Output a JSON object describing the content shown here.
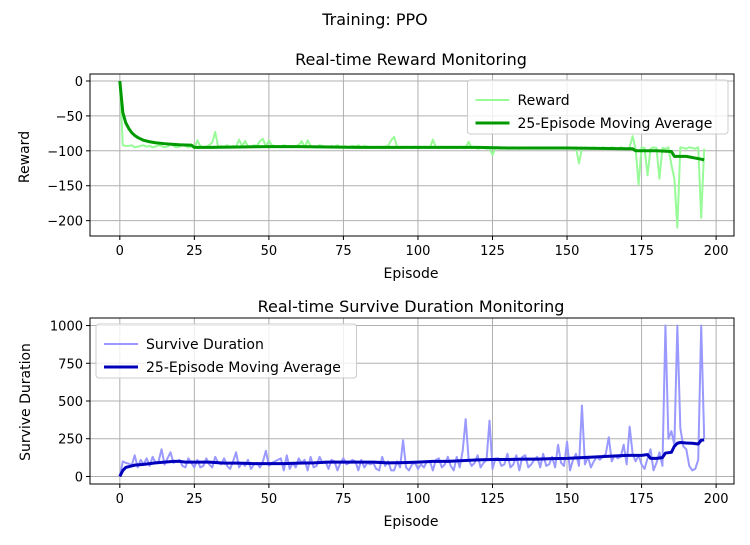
{
  "figure_title": "Training: PPO",
  "chart_data": [
    {
      "type": "line",
      "title": "Real-time Reward Monitoring",
      "xlabel": "Episode",
      "ylabel": "Reward",
      "xlim": [
        -10,
        206
      ],
      "ylim": [
        -222,
        10
      ],
      "xticks": [
        0,
        25,
        50,
        75,
        100,
        125,
        150,
        175,
        200
      ],
      "yticks": [
        0,
        -50,
        -100,
        -150,
        -200
      ],
      "grid": true,
      "legend_position": "top-right",
      "series": [
        {
          "name": "Reward",
          "color": "#98fb98",
          "width": 2,
          "x": [
            0,
            1,
            2,
            3,
            4,
            5,
            6,
            7,
            8,
            9,
            10,
            11,
            12,
            13,
            14,
            15,
            16,
            17,
            18,
            19,
            20,
            21,
            22,
            23,
            24,
            25,
            26,
            27,
            28,
            29,
            30,
            31,
            32,
            33,
            34,
            35,
            36,
            37,
            38,
            39,
            40,
            41,
            42,
            43,
            44,
            45,
            46,
            47,
            48,
            49,
            50,
            51,
            52,
            53,
            54,
            55,
            56,
            57,
            58,
            59,
            60,
            61,
            62,
            63,
            64,
            65,
            66,
            67,
            68,
            69,
            70,
            71,
            72,
            73,
            74,
            75,
            76,
            77,
            78,
            79,
            80,
            81,
            82,
            83,
            84,
            85,
            86,
            87,
            88,
            89,
            90,
            91,
            92,
            93,
            94,
            95,
            96,
            97,
            98,
            99,
            100,
            101,
            102,
            103,
            104,
            105,
            106,
            107,
            108,
            109,
            110,
            111,
            112,
            113,
            114,
            115,
            116,
            117,
            118,
            119,
            120,
            121,
            122,
            123,
            124,
            125,
            126,
            127,
            128,
            129,
            130,
            131,
            132,
            133,
            134,
            135,
            136,
            137,
            138,
            139,
            140,
            141,
            142,
            143,
            144,
            145,
            146,
            147,
            148,
            149,
            150,
            151,
            152,
            153,
            154,
            155,
            156,
            157,
            158,
            159,
            160,
            161,
            162,
            163,
            164,
            165,
            166,
            167,
            168,
            169,
            170,
            171,
            172,
            173,
            174,
            175,
            176,
            177,
            178,
            179,
            180,
            181,
            182,
            183,
            184,
            185,
            186,
            187,
            188,
            189,
            190,
            191,
            192,
            193,
            194,
            195,
            196
          ],
          "y": [
            0,
            -92,
            -93,
            -93,
            -92,
            -95,
            -94,
            -93,
            -92,
            -94,
            -93,
            -95,
            -94,
            -92,
            -93,
            -95,
            -94,
            -91,
            -93,
            -95,
            -94,
            -92,
            -93,
            -95,
            -94,
            -96,
            -85,
            -93,
            -95,
            -94,
            -92,
            -88,
            -73,
            -95,
            -93,
            -94,
            -92,
            -95,
            -93,
            -94,
            -84,
            -93,
            -86,
            -94,
            -95,
            -92,
            -93,
            -86,
            -83,
            -94,
            -85,
            -92,
            -93,
            -94,
            -95,
            -92,
            -93,
            -94,
            -95,
            -93,
            -92,
            -86,
            -95,
            -85,
            -93,
            -94,
            -95,
            -92,
            -93,
            -94,
            -95,
            -93,
            -94,
            -92,
            -95,
            -93,
            -94,
            -95,
            -93,
            -94,
            -92,
            -95,
            -93,
            -94,
            -95,
            -96,
            -94,
            -95,
            -96,
            -94,
            -93,
            -85,
            -80,
            -94,
            -95,
            -96,
            -94,
            -95,
            -96,
            -94,
            -95,
            -96,
            -94,
            -95,
            -96,
            -84,
            -95,
            -96,
            -94,
            -95,
            -96,
            -94,
            -95,
            -96,
            -94,
            -96,
            -95,
            -87,
            -96,
            -95,
            -97,
            -96,
            -95,
            -97,
            -96,
            -106,
            -95,
            -96,
            -97,
            -95,
            -96,
            -97,
            -95,
            -96,
            -97,
            -95,
            -96,
            -97,
            -95,
            -96,
            -97,
            -95,
            -96,
            -97,
            -95,
            -96,
            -97,
            -95,
            -96,
            -97,
            -95,
            -96,
            -97,
            -95,
            -118,
            -97,
            -95,
            -96,
            -97,
            -95,
            -96,
            -97,
            -95,
            -96,
            -97,
            -95,
            -96,
            -97,
            -95,
            -96,
            -97,
            -95,
            -79,
            -97,
            -148,
            -95,
            -96,
            -135,
            -97,
            -95,
            -96,
            -140,
            -96,
            -97,
            -95,
            -120,
            -140,
            -210,
            -95,
            -96,
            -97,
            -95,
            -96,
            -97,
            -95,
            -196,
            -97
          ]
        },
        {
          "name": "25-Episode Moving Average",
          "color": "#009900",
          "width": 3,
          "x": [
            0,
            1,
            2,
            3,
            4,
            5,
            6,
            7,
            8,
            10,
            12,
            15,
            18,
            20,
            22,
            24,
            25,
            26,
            30,
            40,
            50,
            60,
            70,
            80,
            90,
            100,
            110,
            120,
            130,
            140,
            150,
            160,
            170,
            172,
            173,
            180,
            185,
            186,
            190,
            195,
            196
          ],
          "y": [
            0,
            -45,
            -60,
            -68,
            -74,
            -78,
            -81,
            -83,
            -85,
            -87,
            -88.5,
            -89.8,
            -90.8,
            -91.3,
            -91.6,
            -91.9,
            -95,
            -95,
            -95,
            -94.5,
            -94,
            -94,
            -94.5,
            -95,
            -95,
            -95,
            -95,
            -95,
            -96,
            -96,
            -96,
            -96.5,
            -97,
            -97,
            -100,
            -100,
            -101,
            -108,
            -108,
            -112,
            -113
          ]
        }
      ]
    },
    {
      "type": "line",
      "title": "Real-time Survive Duration Monitoring",
      "xlabel": "Episode",
      "ylabel": "Survive Duration",
      "xlim": [
        -10,
        206
      ],
      "ylim": [
        -50,
        1050
      ],
      "xticks": [
        0,
        25,
        50,
        75,
        100,
        125,
        150,
        175,
        200
      ],
      "yticks": [
        0,
        250,
        500,
        750,
        1000
      ],
      "grid": true,
      "legend_position": "top-left",
      "series": [
        {
          "name": "Survive Duration",
          "color": "#9999ff",
          "width": 2,
          "x": [
            0,
            1,
            2,
            3,
            4,
            5,
            6,
            7,
            8,
            9,
            10,
            11,
            12,
            13,
            14,
            15,
            16,
            17,
            18,
            19,
            20,
            21,
            22,
            23,
            24,
            25,
            26,
            27,
            28,
            29,
            30,
            31,
            32,
            33,
            34,
            35,
            36,
            37,
            38,
            39,
            40,
            41,
            42,
            43,
            44,
            45,
            46,
            47,
            48,
            49,
            50,
            51,
            52,
            53,
            54,
            55,
            56,
            57,
            58,
            59,
            60,
            61,
            62,
            63,
            64,
            65,
            66,
            67,
            68,
            69,
            70,
            71,
            72,
            73,
            74,
            75,
            76,
            77,
            78,
            79,
            80,
            81,
            82,
            83,
            84,
            85,
            86,
            87,
            88,
            89,
            90,
            91,
            92,
            93,
            94,
            95,
            96,
            97,
            98,
            99,
            100,
            101,
            102,
            103,
            104,
            105,
            106,
            107,
            108,
            109,
            110,
            111,
            112,
            113,
            114,
            115,
            116,
            117,
            118,
            119,
            120,
            121,
            122,
            123,
            124,
            125,
            126,
            127,
            128,
            129,
            130,
            131,
            132,
            133,
            134,
            135,
            136,
            137,
            138,
            139,
            140,
            141,
            142,
            143,
            144,
            145,
            146,
            147,
            148,
            149,
            150,
            151,
            152,
            153,
            154,
            155,
            156,
            157,
            158,
            159,
            160,
            161,
            162,
            163,
            164,
            165,
            166,
            167,
            168,
            169,
            170,
            171,
            172,
            173,
            174,
            175,
            176,
            177,
            178,
            179,
            180,
            181,
            182,
            183,
            184,
            185,
            186,
            187,
            188,
            189,
            190,
            191,
            192,
            193,
            194,
            195,
            196
          ],
          "y": [
            0,
            100,
            90,
            85,
            75,
            140,
            60,
            110,
            80,
            120,
            70,
            130,
            90,
            100,
            180,
            80,
            120,
            160,
            90,
            100,
            110,
            70,
            60,
            120,
            90,
            60,
            110,
            60,
            70,
            120,
            80,
            60,
            130,
            90,
            80,
            120,
            70,
            50,
            100,
            160,
            60,
            90,
            70,
            110,
            50,
            80,
            90,
            60,
            100,
            170,
            70,
            90,
            100,
            110,
            120,
            40,
            140,
            50,
            90,
            60,
            120,
            90,
            110,
            40,
            130,
            60,
            70,
            130,
            90,
            100,
            50,
            110,
            100,
            40,
            90,
            120,
            80,
            90,
            110,
            100,
            40,
            110,
            60,
            90,
            80,
            90,
            50,
            40,
            130,
            70,
            100,
            40,
            40,
            100,
            60,
            240,
            60,
            40,
            80,
            90,
            50,
            80,
            60,
            100,
            100,
            40,
            110,
            120,
            60,
            80,
            130,
            70,
            40,
            130,
            60,
            170,
            380,
            110,
            70,
            90,
            140,
            60,
            90,
            110,
            370,
            50,
            120,
            120,
            70,
            80,
            150,
            60,
            80,
            140,
            40,
            130,
            140,
            60,
            80,
            110,
            130,
            60,
            150,
            70,
            80,
            130,
            60,
            210,
            90,
            70,
            230,
            40,
            110,
            150,
            70,
            470,
            80,
            130,
            60,
            100,
            130,
            110,
            130,
            150,
            260,
            100,
            140,
            120,
            130,
            210,
            80,
            330,
            150,
            100,
            140,
            80,
            50,
            120,
            180,
            40,
            90,
            160,
            70,
            1000,
            250,
            300,
            210,
            1000,
            320,
            200,
            180,
            70,
            40,
            50,
            110,
            1000,
            250
          ]
        },
        {
          "name": "25-Episode Moving Average",
          "color": "#0000bb",
          "width": 3,
          "x": [
            0,
            1,
            2,
            3,
            5,
            8,
            10,
            12,
            15,
            18,
            20,
            22,
            25,
            30,
            35,
            40,
            45,
            50,
            55,
            60,
            65,
            70,
            75,
            80,
            85,
            90,
            95,
            100,
            105,
            110,
            115,
            120,
            125,
            130,
            135,
            140,
            145,
            150,
            155,
            160,
            165,
            170,
            175,
            177,
            178,
            180,
            182,
            183,
            185,
            186,
            187,
            188,
            190,
            192,
            194,
            195,
            196
          ],
          "y": [
            0,
            40,
            60,
            65,
            75,
            80,
            85,
            90,
            95,
            100,
            100,
            95,
            95,
            95,
            88,
            88,
            85,
            85,
            85,
            88,
            90,
            95,
            95,
            95,
            95,
            90,
            92,
            95,
            100,
            100,
            105,
            110,
            112,
            112,
            115,
            115,
            118,
            120,
            125,
            130,
            135,
            140,
            140,
            145,
            120,
            120,
            125,
            155,
            160,
            200,
            220,
            225,
            222,
            220,
            215,
            240,
            242
          ]
        }
      ]
    }
  ]
}
